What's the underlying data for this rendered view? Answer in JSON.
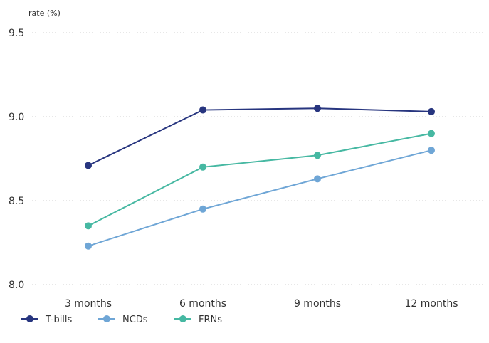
{
  "chart_data": {
    "type": "line",
    "title": "",
    "xlabel": "",
    "ylabel": "rate (%)",
    "categories": [
      "3 months",
      "6 months",
      "9 months",
      "12 months"
    ],
    "ylim": [
      8.0,
      9.5
    ],
    "yticks": [
      "8.0",
      "8.5",
      "9.0",
      "9.5"
    ],
    "grid": "horizontal dotted",
    "legend_position": "bottom-left",
    "series": [
      {
        "name": "T-bills",
        "color": "#27357f",
        "values": [
          8.71,
          9.04,
          9.05,
          9.03
        ]
      },
      {
        "name": "NCDs",
        "color": "#6fa6d6",
        "values": [
          8.23,
          8.45,
          8.63,
          8.8
        ]
      },
      {
        "name": "FRNs",
        "color": "#46b8a2",
        "values": [
          8.35,
          8.7,
          8.77,
          8.9
        ]
      }
    ]
  }
}
